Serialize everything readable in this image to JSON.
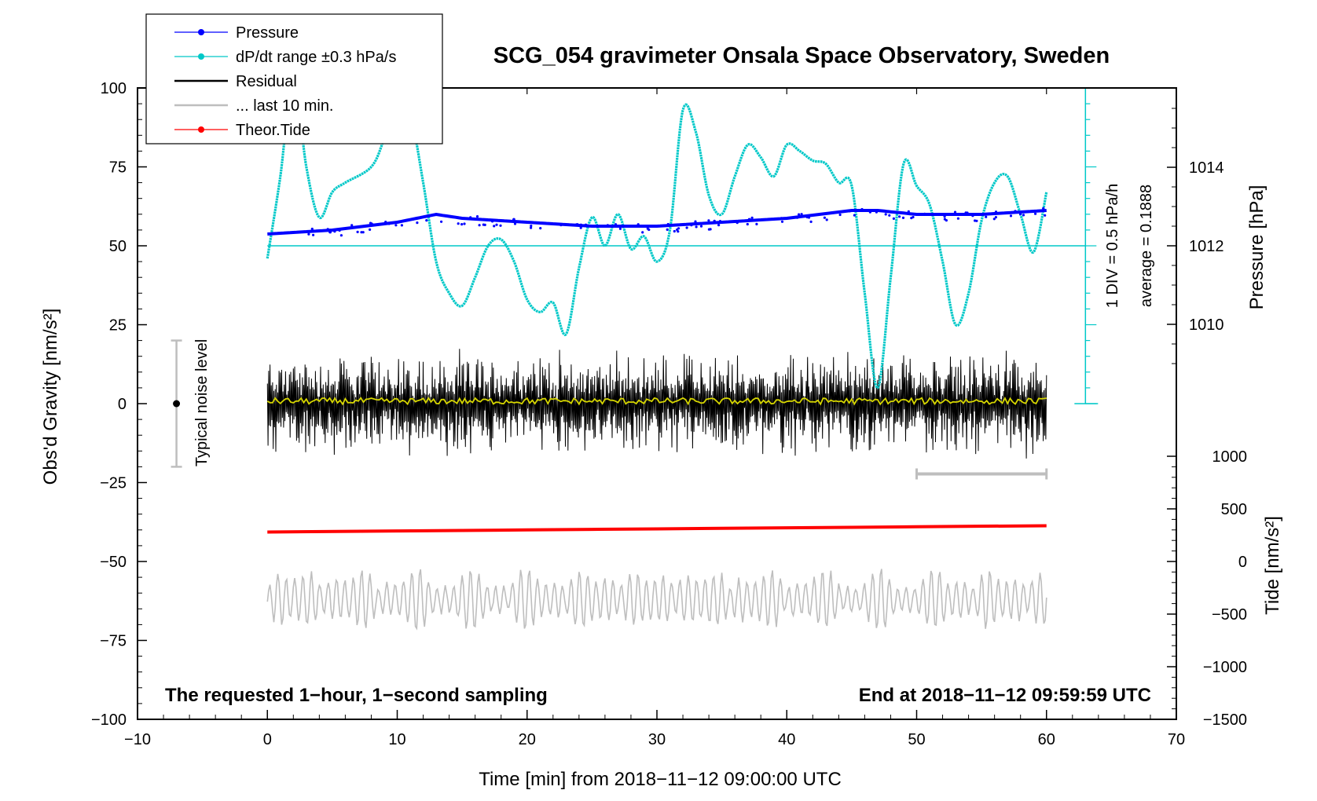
{
  "chart_data": {
    "type": "line",
    "title": "SCG_054 gravimeter Onsala Space Observatory, Sweden",
    "xlabel": "Time [min] from 2018−11−12 09:00:00 UTC",
    "ylabel_left": "Obs'd Gravity [nm/s²]",
    "ylabel_right_top": "Pressure [hPa]",
    "ylabel_right_bottom": "Tide [nm/s²]",
    "xlim": [
      -10,
      70
    ],
    "ylim": [
      -100,
      100
    ],
    "x_ticks": [
      "−10",
      "0",
      "10",
      "20",
      "30",
      "40",
      "50",
      "60",
      "70"
    ],
    "y_ticks": [
      "100",
      "75",
      "50",
      "25",
      "0",
      "−25",
      "−50",
      "−75",
      "−100"
    ],
    "pressure_ticks": [
      "1014",
      "1012",
      "1010"
    ],
    "tide_ticks": [
      "1000",
      "500",
      "0",
      "−500",
      "−1000",
      "−1500"
    ],
    "grid": false,
    "legend_position": "top-left",
    "legend": [
      {
        "label": "Pressure",
        "color": "#0000ff",
        "marker": "dot"
      },
      {
        "label": "dP/dt range ±0.3 hPa/s",
        "color": "#00c8c8",
        "marker": "dot"
      },
      {
        "label": "Residual",
        "color": "#000000",
        "marker": "line"
      },
      {
        "label": "... last 10 min.",
        "color": "#bebebe",
        "marker": "line"
      },
      {
        "label": "Theor.Tide",
        "color": "#ff0000",
        "marker": "dot"
      }
    ],
    "annotations": {
      "bottom_left": "The requested 1−hour, 1−second sampling",
      "bottom_right": "End at 2018−11−12 09:59:59 UTC",
      "noise_label": "Typical noise level",
      "div_label": "1 DIV = 0.5 hPa/h",
      "average_label": "average = 0.1888"
    },
    "noise_bar": {
      "x": -7,
      "y_min": -20,
      "y_max": 20,
      "center": 0
    },
    "last10_bar": {
      "x_start": 50,
      "x_end": 60,
      "y": -25
    },
    "series": [
      {
        "name": "Pressure",
        "color": "#0000ff",
        "unit": "hPa",
        "x": [
          0,
          5,
          10,
          13,
          15,
          20,
          25,
          30,
          35,
          40,
          45,
          47,
          50,
          55,
          60
        ],
        "values": [
          1012.3,
          1012.4,
          1012.6,
          1012.8,
          1012.7,
          1012.6,
          1012.5,
          1012.5,
          1012.6,
          1012.7,
          1012.9,
          1012.9,
          1012.8,
          1012.8,
          1012.9
        ]
      },
      {
        "name": "dP/dt",
        "color": "#00c8c8",
        "x": [
          0,
          1,
          2,
          3,
          4,
          5,
          6,
          8,
          9,
          10,
          11,
          12,
          13,
          14,
          15,
          16,
          17,
          18,
          19,
          20,
          21,
          22,
          23,
          24,
          25,
          26,
          27,
          28,
          29,
          30,
          31,
          32,
          33,
          34,
          35,
          36,
          37,
          38,
          39,
          40,
          41,
          42,
          43,
          44,
          45,
          46,
          47,
          48,
          49,
          50,
          51,
          52,
          53,
          54,
          55,
          56,
          57,
          58,
          59,
          60
        ],
        "values": [
          46,
          72,
          104,
          75,
          59,
          67,
          70,
          75,
          84,
          96,
          92,
          70,
          45,
          35,
          31,
          40,
          50,
          52,
          45,
          33,
          29,
          32,
          22,
          43,
          59,
          50,
          60,
          49,
          53,
          45,
          55,
          93,
          86,
          66,
          60,
          72,
          82,
          78,
          72,
          82,
          80,
          77,
          76,
          70,
          69,
          35,
          5,
          40,
          76,
          69,
          63,
          45,
          25,
          35,
          58,
          70,
          72,
          60,
          48,
          67
        ]
      },
      {
        "name": "Residual",
        "color": "#000000",
        "x": [
          0,
          60
        ],
        "values": [
          0,
          0
        ],
        "amplitude": 12
      },
      {
        "name": "Residual mean",
        "color": "#d6d600",
        "x": [
          0,
          60
        ],
        "values": [
          0.8,
          0.8
        ]
      },
      {
        "name": "... last 10 min.",
        "color": "#bebebe",
        "x": [
          0,
          60
        ],
        "values": [
          -62,
          -62
        ],
        "amplitude": 8
      },
      {
        "name": "Theor.Tide",
        "color": "#ff0000",
        "unit": "nm/s²",
        "x": [
          0,
          10,
          20,
          30,
          40,
          50,
          60
        ],
        "values": [
          280,
          290,
          300,
          310,
          320,
          330,
          340
        ]
      }
    ]
  }
}
